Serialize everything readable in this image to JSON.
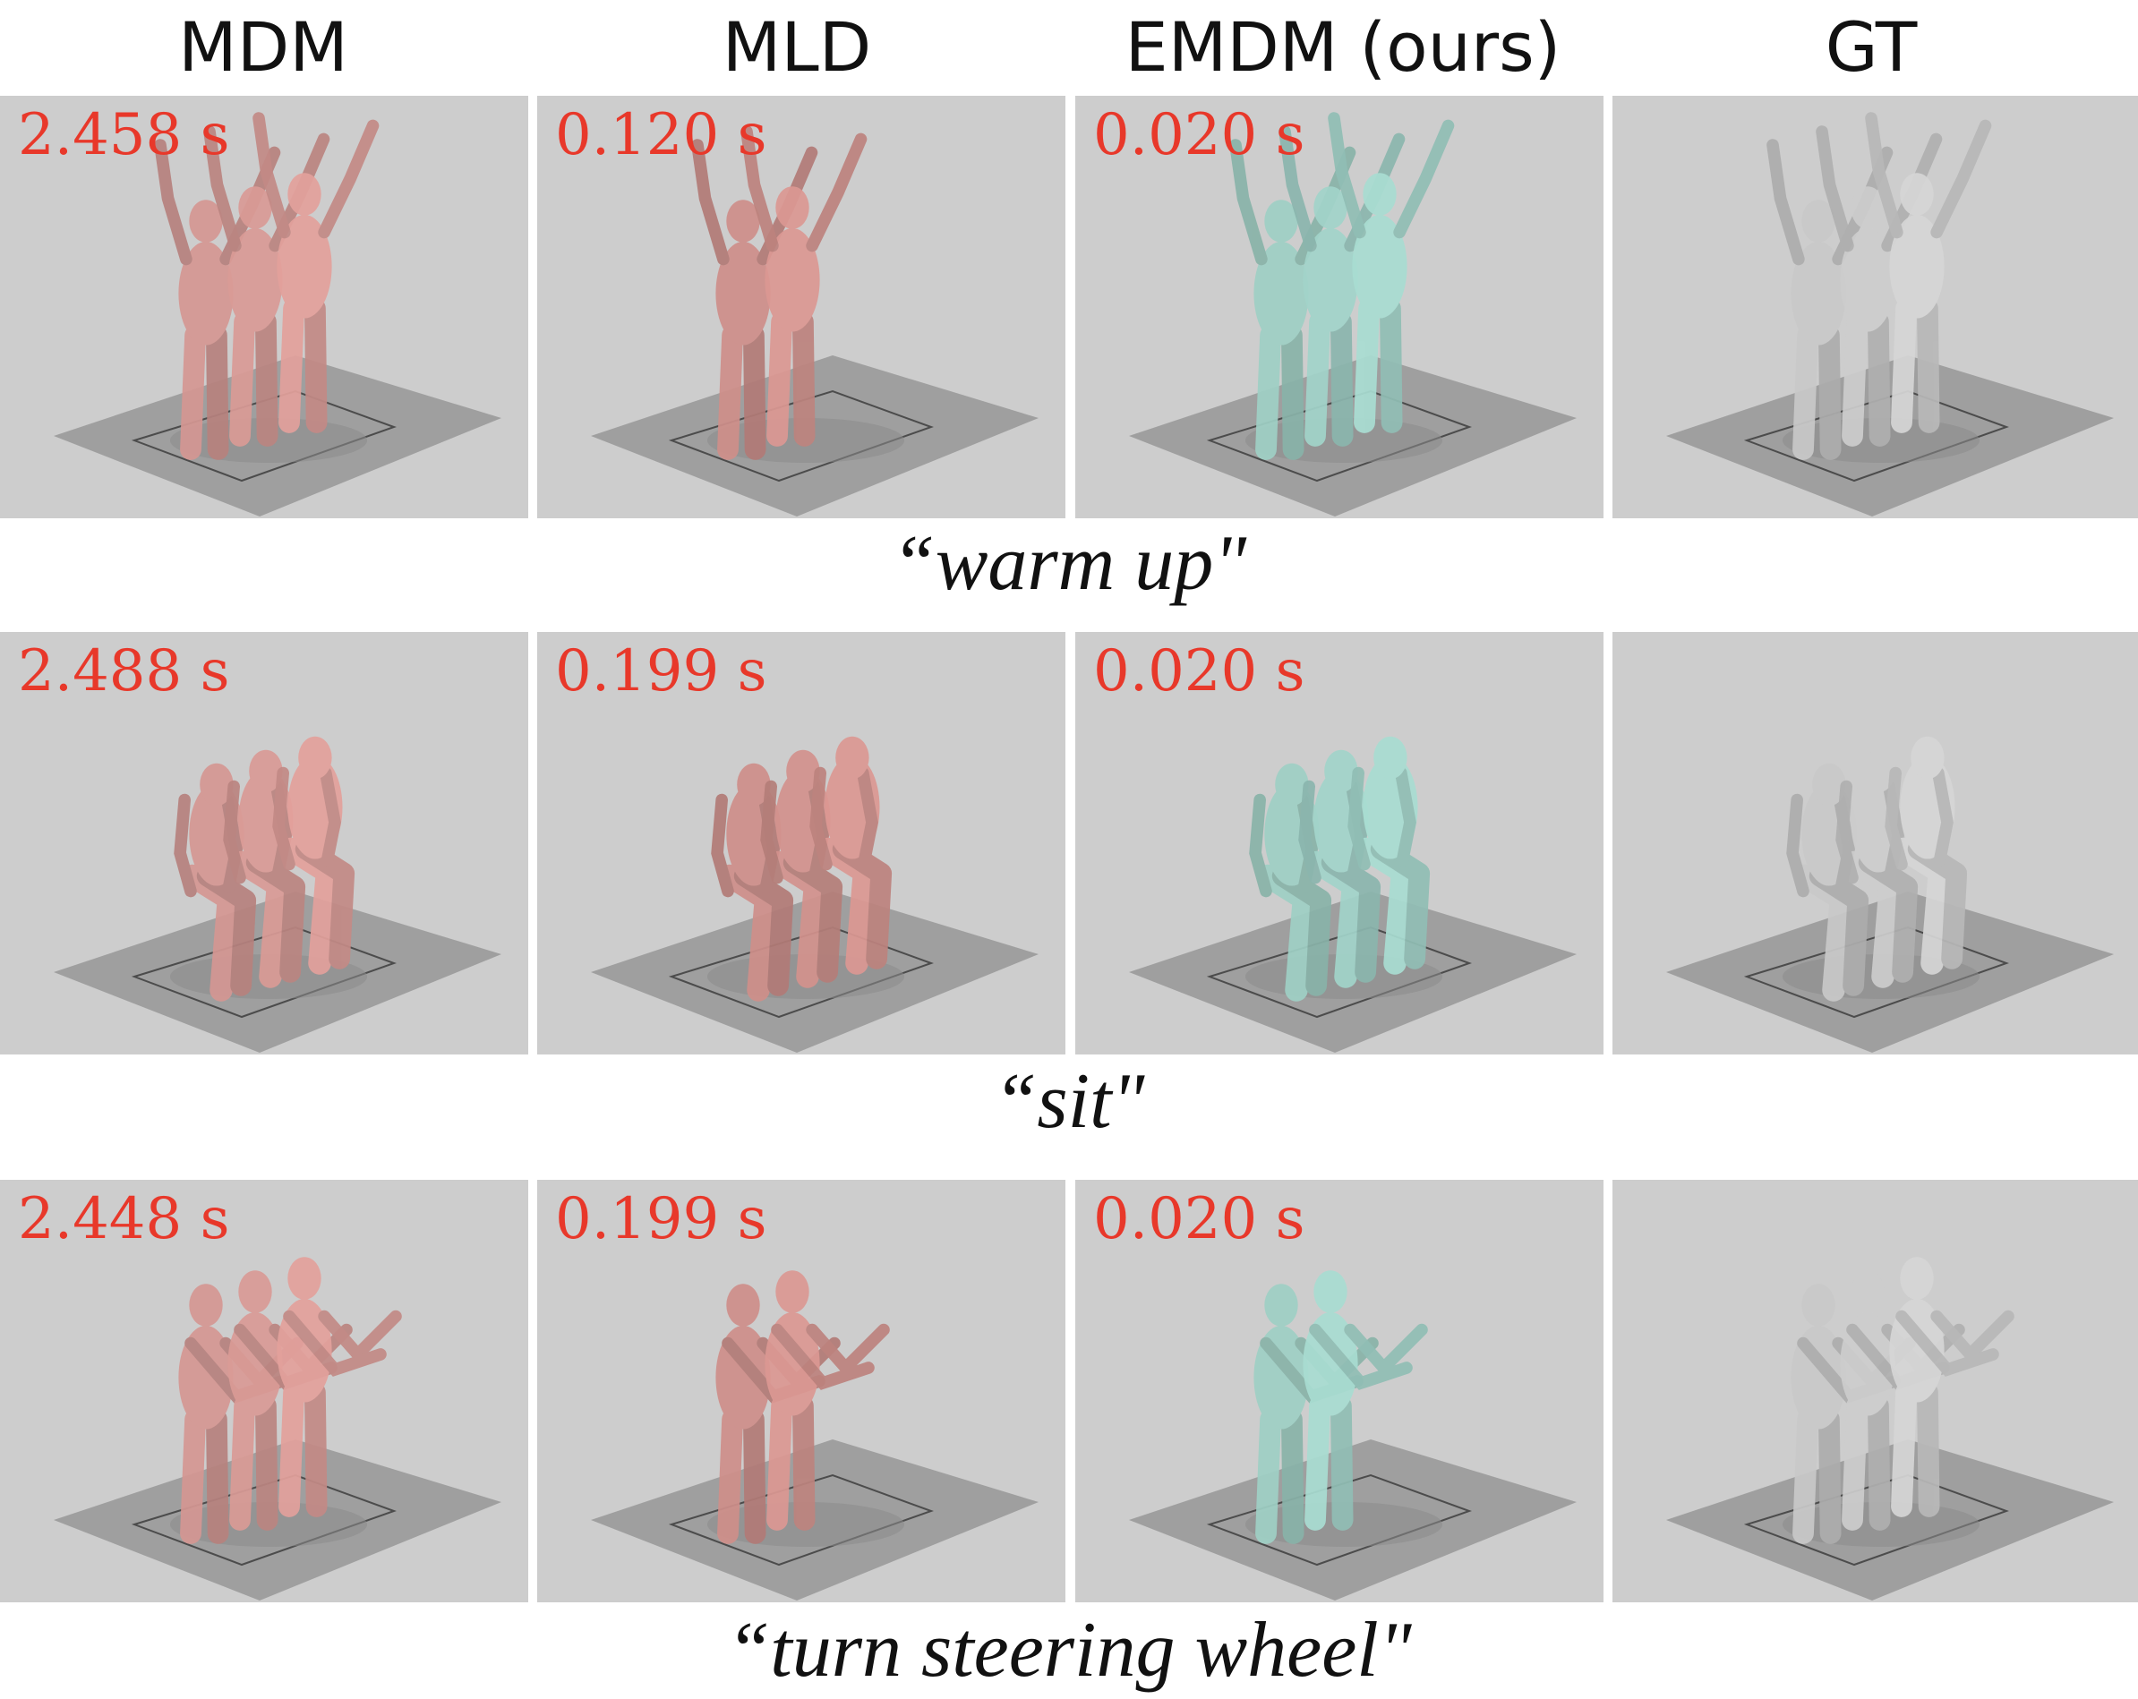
{
  "columns": [
    "MDM",
    "MLD",
    "EMDM (ours)",
    "GT"
  ],
  "colors": {
    "timing_text": "#e8382a",
    "mdm_body": "#e3a19c",
    "mld_body": "#dc9893",
    "emdm_body": "#a9ddd2",
    "gt_body": "#d6d6d6",
    "background": "#cdcdcd",
    "floor": "#9f9f9f"
  },
  "rows": [
    {
      "caption": "“warm up\"",
      "panels": [
        {
          "method": "MDM",
          "timing": "2.458 s",
          "figures": 3
        },
        {
          "method": "MLD",
          "timing": "0.120 s",
          "figures": 2
        },
        {
          "method": "EMDM (ours)",
          "timing": "0.020 s",
          "figures": 3
        },
        {
          "method": "GT",
          "timing": "",
          "figures": 3
        }
      ]
    },
    {
      "caption": "“sit\"",
      "panels": [
        {
          "method": "MDM",
          "timing": "2.488 s",
          "figures": 3
        },
        {
          "method": "MLD",
          "timing": "0.199 s",
          "figures": 3
        },
        {
          "method": "EMDM (ours)",
          "timing": "0.020 s",
          "figures": 3
        },
        {
          "method": "GT",
          "timing": "",
          "figures": 3
        }
      ]
    },
    {
      "caption": "“turn steering wheel\"",
      "panels": [
        {
          "method": "MDM",
          "timing": "2.448 s",
          "figures": 3
        },
        {
          "method": "MLD",
          "timing": "0.199 s",
          "figures": 2
        },
        {
          "method": "EMDM (ours)",
          "timing": "0.020 s",
          "figures": 2
        },
        {
          "method": "GT",
          "timing": "",
          "figures": 3
        }
      ]
    }
  ]
}
